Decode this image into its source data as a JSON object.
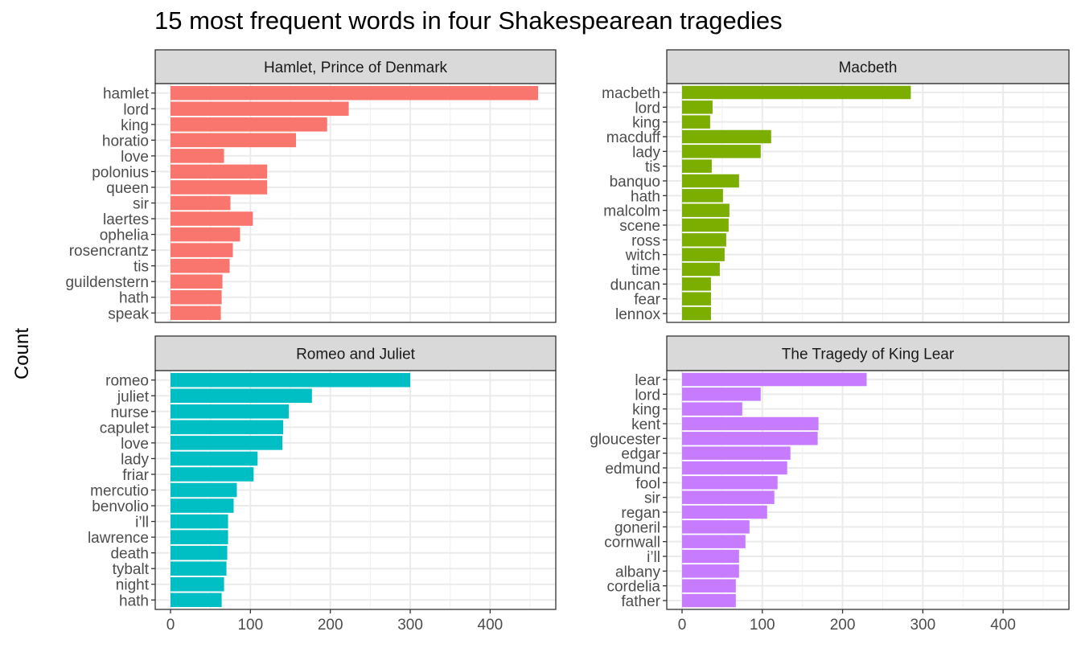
{
  "chart_data": {
    "type": "bar",
    "orientation": "horizontal",
    "title": "15 most frequent words in four Shakespearean tragedies",
    "xlabel": "",
    "ylabel": "Count",
    "xlim": [
      0,
      460
    ],
    "x_ticks": [
      "0",
      "100",
      "200",
      "300",
      "400"
    ],
    "grid": true,
    "legend": "none",
    "panels": [
      {
        "name": "Hamlet, Prince of Denmark",
        "color": "#F8766D",
        "categories": [
          "hamlet",
          "lord",
          "king",
          "horatio",
          "love",
          "polonius",
          "queen",
          "sir",
          "laertes",
          "ophelia",
          "rosencrantz",
          "tis",
          "guildenstern",
          "hath",
          "speak"
        ],
        "values": [
          460,
          223,
          196,
          157,
          67,
          121,
          121,
          75,
          103,
          87,
          78,
          74,
          65,
          64,
          63
        ]
      },
      {
        "name": "Macbeth",
        "color": "#7CAE00",
        "categories": [
          "macbeth",
          "lord",
          "king",
          "macduff",
          "lady",
          "tis",
          "banquo",
          "hath",
          "malcolm",
          "scene",
          "ross",
          "witch",
          "time",
          "duncan",
          "fear",
          "lennox"
        ],
        "values": [
          285,
          38,
          35,
          111,
          98,
          37,
          71,
          51,
          59,
          58,
          55,
          53,
          47,
          36,
          36,
          36
        ]
      },
      {
        "name": "Romeo and Juliet",
        "color": "#00BFC4",
        "categories": [
          "romeo",
          "juliet",
          "nurse",
          "capulet",
          "love",
          "lady",
          "friar",
          "mercutio",
          "benvolio",
          "i’ll",
          "lawrence",
          "death",
          "tybalt",
          "night",
          "hath"
        ],
        "values": [
          300,
          177,
          148,
          141,
          140,
          109,
          104,
          83,
          79,
          72,
          72,
          71,
          70,
          67,
          64
        ]
      },
      {
        "name": "The Tragedy of King Lear",
        "color": "#C77CFF",
        "categories": [
          "lear",
          "lord",
          "king",
          "kent",
          "gloucester",
          "edgar",
          "edmund",
          "fool",
          "sir",
          "regan",
          "goneril",
          "cornwall",
          "i’ll",
          "albany",
          "cordelia",
          "father"
        ],
        "values": [
          230,
          98,
          75,
          170,
          169,
          135,
          131,
          119,
          115,
          106,
          84,
          79,
          71,
          71,
          67,
          67
        ]
      }
    ]
  }
}
